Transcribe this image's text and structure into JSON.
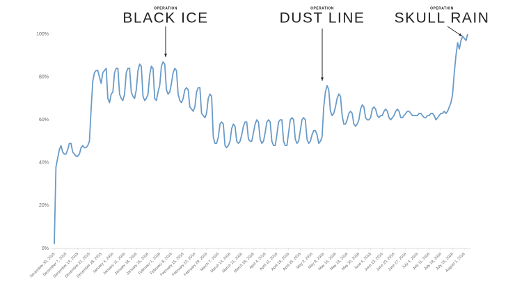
{
  "chart_data": {
    "type": "line",
    "color": "#6a9bc8",
    "ylim": [
      0,
      100
    ],
    "yticks": [
      {
        "value": 0,
        "label": "0%"
      },
      {
        "value": 20,
        "label": "20%"
      },
      {
        "value": 40,
        "label": "40%"
      },
      {
        "value": 60,
        "label": "60%"
      },
      {
        "value": 80,
        "label": "80%"
      },
      {
        "value": 100,
        "label": "100%"
      }
    ],
    "annotations": [
      {
        "kicker": "OPERATION",
        "text": "BLACK ICE"
      },
      {
        "kicker": "OPERATION",
        "text": "DUST LINE"
      },
      {
        "kicker": "OPERATION",
        "text": "SKULL RAIN"
      }
    ],
    "categories": [
      "November 30, 2015",
      null,
      null,
      null,
      null,
      null,
      null,
      "December 7, 2015",
      null,
      null,
      null,
      null,
      null,
      null,
      "December 14, 2015",
      null,
      null,
      null,
      null,
      null,
      null,
      "December 21, 2015",
      null,
      null,
      null,
      null,
      null,
      null,
      "December 28, 2015",
      null,
      null,
      null,
      null,
      null,
      null,
      "January 4, 2016",
      null,
      null,
      null,
      null,
      null,
      null,
      "January 11, 2016",
      null,
      null,
      null,
      null,
      null,
      null,
      "January 18, 2016",
      null,
      null,
      null,
      null,
      null,
      null,
      "January 25, 2016",
      null,
      null,
      null,
      null,
      null,
      null,
      "February 1, 2016",
      null,
      null,
      null,
      null,
      null,
      null,
      "February 8, 2016",
      null,
      null,
      null,
      null,
      null,
      null,
      "February 15, 2016",
      null,
      null,
      null,
      null,
      null,
      null,
      "February 22, 2016",
      null,
      null,
      null,
      null,
      null,
      null,
      "February 29, 2016",
      null,
      null,
      null,
      null,
      null,
      null,
      "March 7, 2016",
      null,
      null,
      null,
      null,
      null,
      null,
      "March 14, 2016",
      null,
      null,
      null,
      null,
      null,
      null,
      "March 21, 2016",
      null,
      null,
      null,
      null,
      null,
      null,
      "March 28, 2016",
      null,
      null,
      null,
      null,
      null,
      null,
      "April 4, 2016",
      null,
      null,
      null,
      null,
      null,
      null,
      "April 11, 2016",
      null,
      null,
      null,
      null,
      null,
      null,
      "April 18, 2016",
      null,
      null,
      null,
      null,
      null,
      null,
      "April 25, 2016",
      null,
      null,
      null,
      null,
      null,
      null,
      "May 2, 2016",
      null,
      null,
      null,
      null,
      null,
      null,
      "May 9, 2016",
      null,
      null,
      null,
      null,
      null,
      null,
      "May 16, 2016",
      null,
      null,
      null,
      null,
      null,
      null,
      "May 23, 2016",
      null,
      null,
      null,
      null,
      null,
      null,
      "May 30, 2016",
      null,
      null,
      null,
      null,
      null,
      null,
      "June 6, 2016",
      null,
      null,
      null,
      null,
      null,
      null,
      "June 13, 2016",
      null,
      null,
      null,
      null,
      null,
      null,
      "June 20, 2016",
      null,
      null,
      null,
      null,
      null,
      null,
      "June 27, 2016",
      null,
      null,
      null,
      null,
      null,
      null,
      "July 4, 2016",
      null,
      null,
      null,
      null,
      null,
      null,
      "July 11, 2016",
      null,
      null,
      null,
      null,
      null,
      null,
      "July 18, 2016",
      null,
      null,
      null,
      null,
      null,
      null,
      "July 25, 2016",
      null,
      null,
      null,
      null,
      null,
      null,
      "August 1, 2016",
      null,
      null
    ],
    "values": [
      2,
      38,
      42,
      46,
      48,
      45,
      44,
      44,
      46,
      49,
      49,
      45,
      44,
      43,
      43,
      44,
      47,
      48,
      47,
      47,
      48,
      50,
      65,
      78,
      82,
      83,
      83,
      80,
      77,
      82,
      83,
      84,
      70,
      68,
      72,
      73,
      82,
      84,
      84,
      72,
      70,
      69,
      72,
      82,
      84,
      84,
      73,
      71,
      70,
      74,
      83,
      86,
      85,
      71,
      69,
      70,
      72,
      81,
      85,
      84,
      70,
      69,
      73,
      76,
      85,
      87,
      86,
      74,
      72,
      73,
      77,
      82,
      84,
      83,
      72,
      69,
      68,
      70,
      74,
      75,
      74,
      66,
      65,
      64,
      66,
      73,
      75,
      75,
      63,
      62,
      61,
      63,
      70,
      72,
      71,
      52,
      49,
      49,
      52,
      58,
      59,
      58,
      48,
      47,
      48,
      50,
      56,
      58,
      57,
      50,
      49,
      50,
      53,
      57,
      59,
      59,
      51,
      50,
      50,
      54,
      58,
      60,
      59,
      51,
      49,
      50,
      54,
      59,
      60,
      59,
      50,
      48,
      48,
      53,
      59,
      60,
      60,
      50,
      48,
      48,
      54,
      60,
      61,
      60,
      51,
      49,
      50,
      55,
      60,
      61,
      60,
      51,
      49,
      50,
      53,
      55,
      55,
      53,
      49,
      50,
      52,
      66,
      73,
      76,
      74,
      64,
      62,
      63,
      66,
      70,
      72,
      71,
      62,
      58,
      58,
      60,
      63,
      64,
      63,
      58,
      57,
      58,
      60,
      65,
      67,
      66,
      61,
      60,
      60,
      61,
      65,
      66,
      65,
      62,
      61,
      62,
      62,
      64,
      65,
      64,
      61,
      60,
      61,
      62,
      64,
      65,
      64,
      61,
      61,
      62,
      63,
      64,
      64,
      63,
      62,
      62,
      62,
      62,
      63,
      63,
      62,
      61,
      61,
      62,
      62,
      63,
      63,
      62,
      60,
      61,
      62,
      63,
      63,
      64,
      63,
      64,
      66,
      68,
      72,
      82,
      90,
      96,
      93,
      97,
      99,
      98,
      97,
      100
    ]
  }
}
